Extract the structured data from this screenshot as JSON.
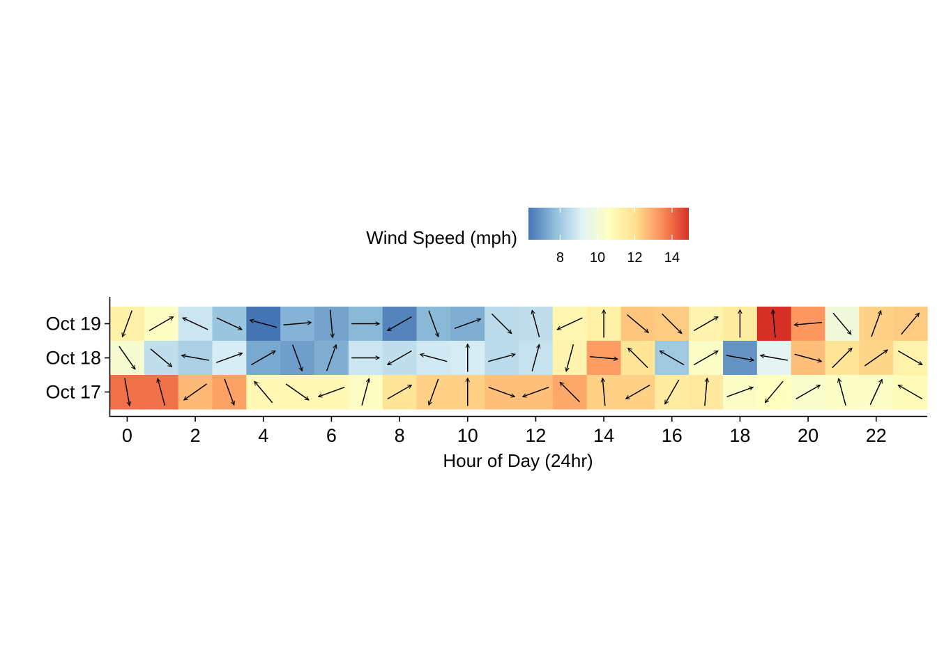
{
  "chart_data": {
    "type": "heatmap",
    "title": "",
    "xlabel": "Hour of Day (24hr)",
    "ylabel": "",
    "legend": {
      "title": "Wind Speed (mph)",
      "position": "top",
      "ticks": [
        8,
        10,
        12,
        14
      ],
      "range": [
        6.3,
        14.9
      ],
      "colors": [
        "#4575b4",
        "#91bfdb",
        "#e0f3f8",
        "#ffffbf",
        "#fee090",
        "#fc8d59",
        "#d73027"
      ]
    },
    "x_ticks": [
      0,
      2,
      4,
      6,
      8,
      10,
      12,
      14,
      16,
      18,
      20,
      22
    ],
    "x_range": [
      -0.5,
      23.5
    ],
    "rows": [
      {
        "label": "Oct 19",
        "speed": [
          11.3,
          10.5,
          8.8,
          7.9,
          6.3,
          7.5,
          7.2,
          7.6,
          6.6,
          7.6,
          7.4,
          8.5,
          8.6,
          11.0,
          11.3,
          12.5,
          12.4,
          11.1,
          11.5,
          14.9,
          13.3,
          9.9,
          12.3,
          12.4
        ],
        "direction": [
          200,
          60,
          295,
          115,
          285,
          85,
          175,
          90,
          240,
          160,
          70,
          135,
          345,
          245,
          0,
          130,
          135,
          60,
          0,
          355,
          265,
          140,
          20,
          40
        ]
      },
      {
        "label": "Oct 18",
        "speed": [
          10.2,
          8.6,
          8.2,
          9.0,
          7.3,
          7.1,
          7.4,
          8.8,
          8.6,
          8.9,
          9.0,
          8.5,
          8.7,
          11.1,
          13.2,
          11.8,
          8.0,
          10.4,
          6.9,
          9.3,
          12.6,
          11.8,
          12.2,
          11.2
        ],
        "direction": [
          145,
          130,
          280,
          70,
          60,
          160,
          20,
          90,
          240,
          285,
          0,
          75,
          15,
          195,
          95,
          315,
          300,
          60,
          100,
          280,
          105,
          45,
          55,
          120
        ]
      },
      {
        "label": "Oct 17",
        "speed": [
          13.9,
          13.9,
          12.7,
          13.1,
          10.9,
          10.9,
          10.9,
          10.5,
          11.8,
          12.3,
          12.3,
          12.6,
          12.6,
          13.0,
          12.3,
          12.3,
          11.5,
          11.6,
          10.4,
          10.6,
          10.3,
          10.4,
          10.4,
          10.8
        ],
        "direction": [
          170,
          345,
          235,
          160,
          320,
          125,
          250,
          15,
          60,
          200,
          0,
          110,
          250,
          315,
          355,
          240,
          210,
          5,
          70,
          220,
          60,
          345,
          25,
          300
        ]
      }
    ]
  }
}
